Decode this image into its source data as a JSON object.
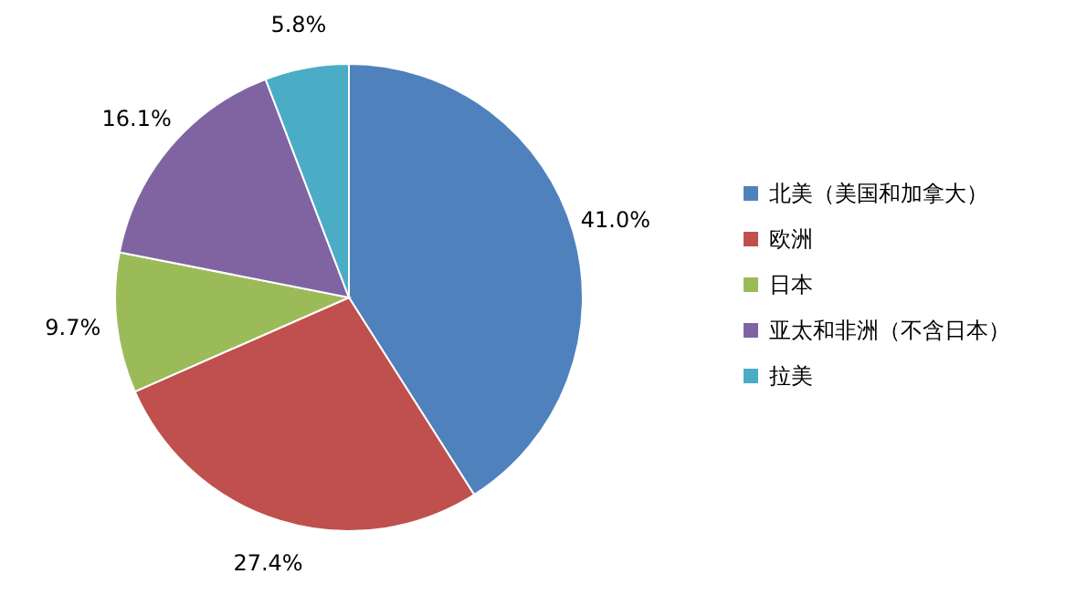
{
  "chart_data": {
    "type": "pie",
    "categories": [
      "北美（美国和加拿大）",
      "欧洲",
      "日本",
      "亚太和非洲（不含日本）",
      "拉美"
    ],
    "values": [
      41.0,
      27.4,
      9.7,
      16.1,
      5.8
    ],
    "value_labels": [
      "41.0%",
      "27.4%",
      "9.7%",
      "16.1%",
      "5.8%"
    ],
    "colors": [
      "#4f81bd",
      "#c0504d",
      "#9bbb59",
      "#8064a2",
      "#4bacc6"
    ],
    "legend": "right"
  }
}
